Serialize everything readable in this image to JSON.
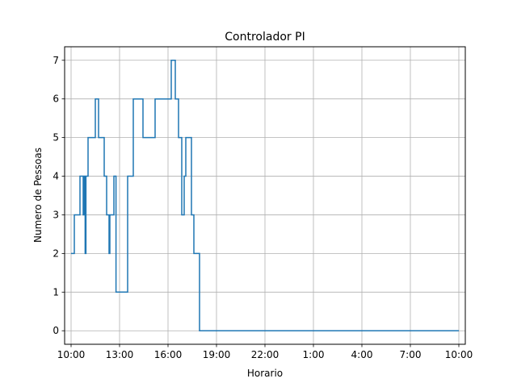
{
  "chart_data": {
    "type": "line",
    "title": "Controlador PI",
    "xlabel": "Horario",
    "ylabel": "Numero de Pessoas",
    "x_unit": "hours",
    "xlim": [
      9.6,
      34.4
    ],
    "ylim": [
      -0.35,
      7.35
    ],
    "x_ticks": [
      {
        "value": 10,
        "label": "10:00"
      },
      {
        "value": 13,
        "label": "13:00"
      },
      {
        "value": 16,
        "label": "16:00"
      },
      {
        "value": 19,
        "label": "19:00"
      },
      {
        "value": 22,
        "label": "22:00"
      },
      {
        "value": 25,
        "label": "1:00"
      },
      {
        "value": 28,
        "label": "4:00"
      },
      {
        "value": 31,
        "label": "7:00"
      },
      {
        "value": 34,
        "label": "10:00"
      }
    ],
    "y_ticks": [
      0,
      1,
      2,
      3,
      4,
      5,
      6,
      7
    ],
    "grid": true,
    "color": "#1f77b4",
    "series": [
      {
        "step": "post",
        "points": [
          [
            10.0,
            2
          ],
          [
            10.2,
            3
          ],
          [
            10.55,
            4
          ],
          [
            10.75,
            3
          ],
          [
            10.8,
            4
          ],
          [
            10.87,
            2
          ],
          [
            10.92,
            4
          ],
          [
            11.05,
            5
          ],
          [
            11.5,
            6
          ],
          [
            11.7,
            5
          ],
          [
            12.05,
            4
          ],
          [
            12.2,
            3
          ],
          [
            12.35,
            2
          ],
          [
            12.4,
            3
          ],
          [
            12.65,
            4
          ],
          [
            12.78,
            1
          ],
          [
            13.5,
            4
          ],
          [
            13.85,
            6
          ],
          [
            14.45,
            5
          ],
          [
            15.2,
            6
          ],
          [
            16.2,
            7
          ],
          [
            16.45,
            6
          ],
          [
            16.65,
            5
          ],
          [
            16.85,
            3
          ],
          [
            17.0,
            4
          ],
          [
            17.1,
            5
          ],
          [
            17.45,
            3
          ],
          [
            17.6,
            2
          ],
          [
            17.95,
            0
          ],
          [
            34.0,
            0
          ]
        ]
      }
    ]
  }
}
